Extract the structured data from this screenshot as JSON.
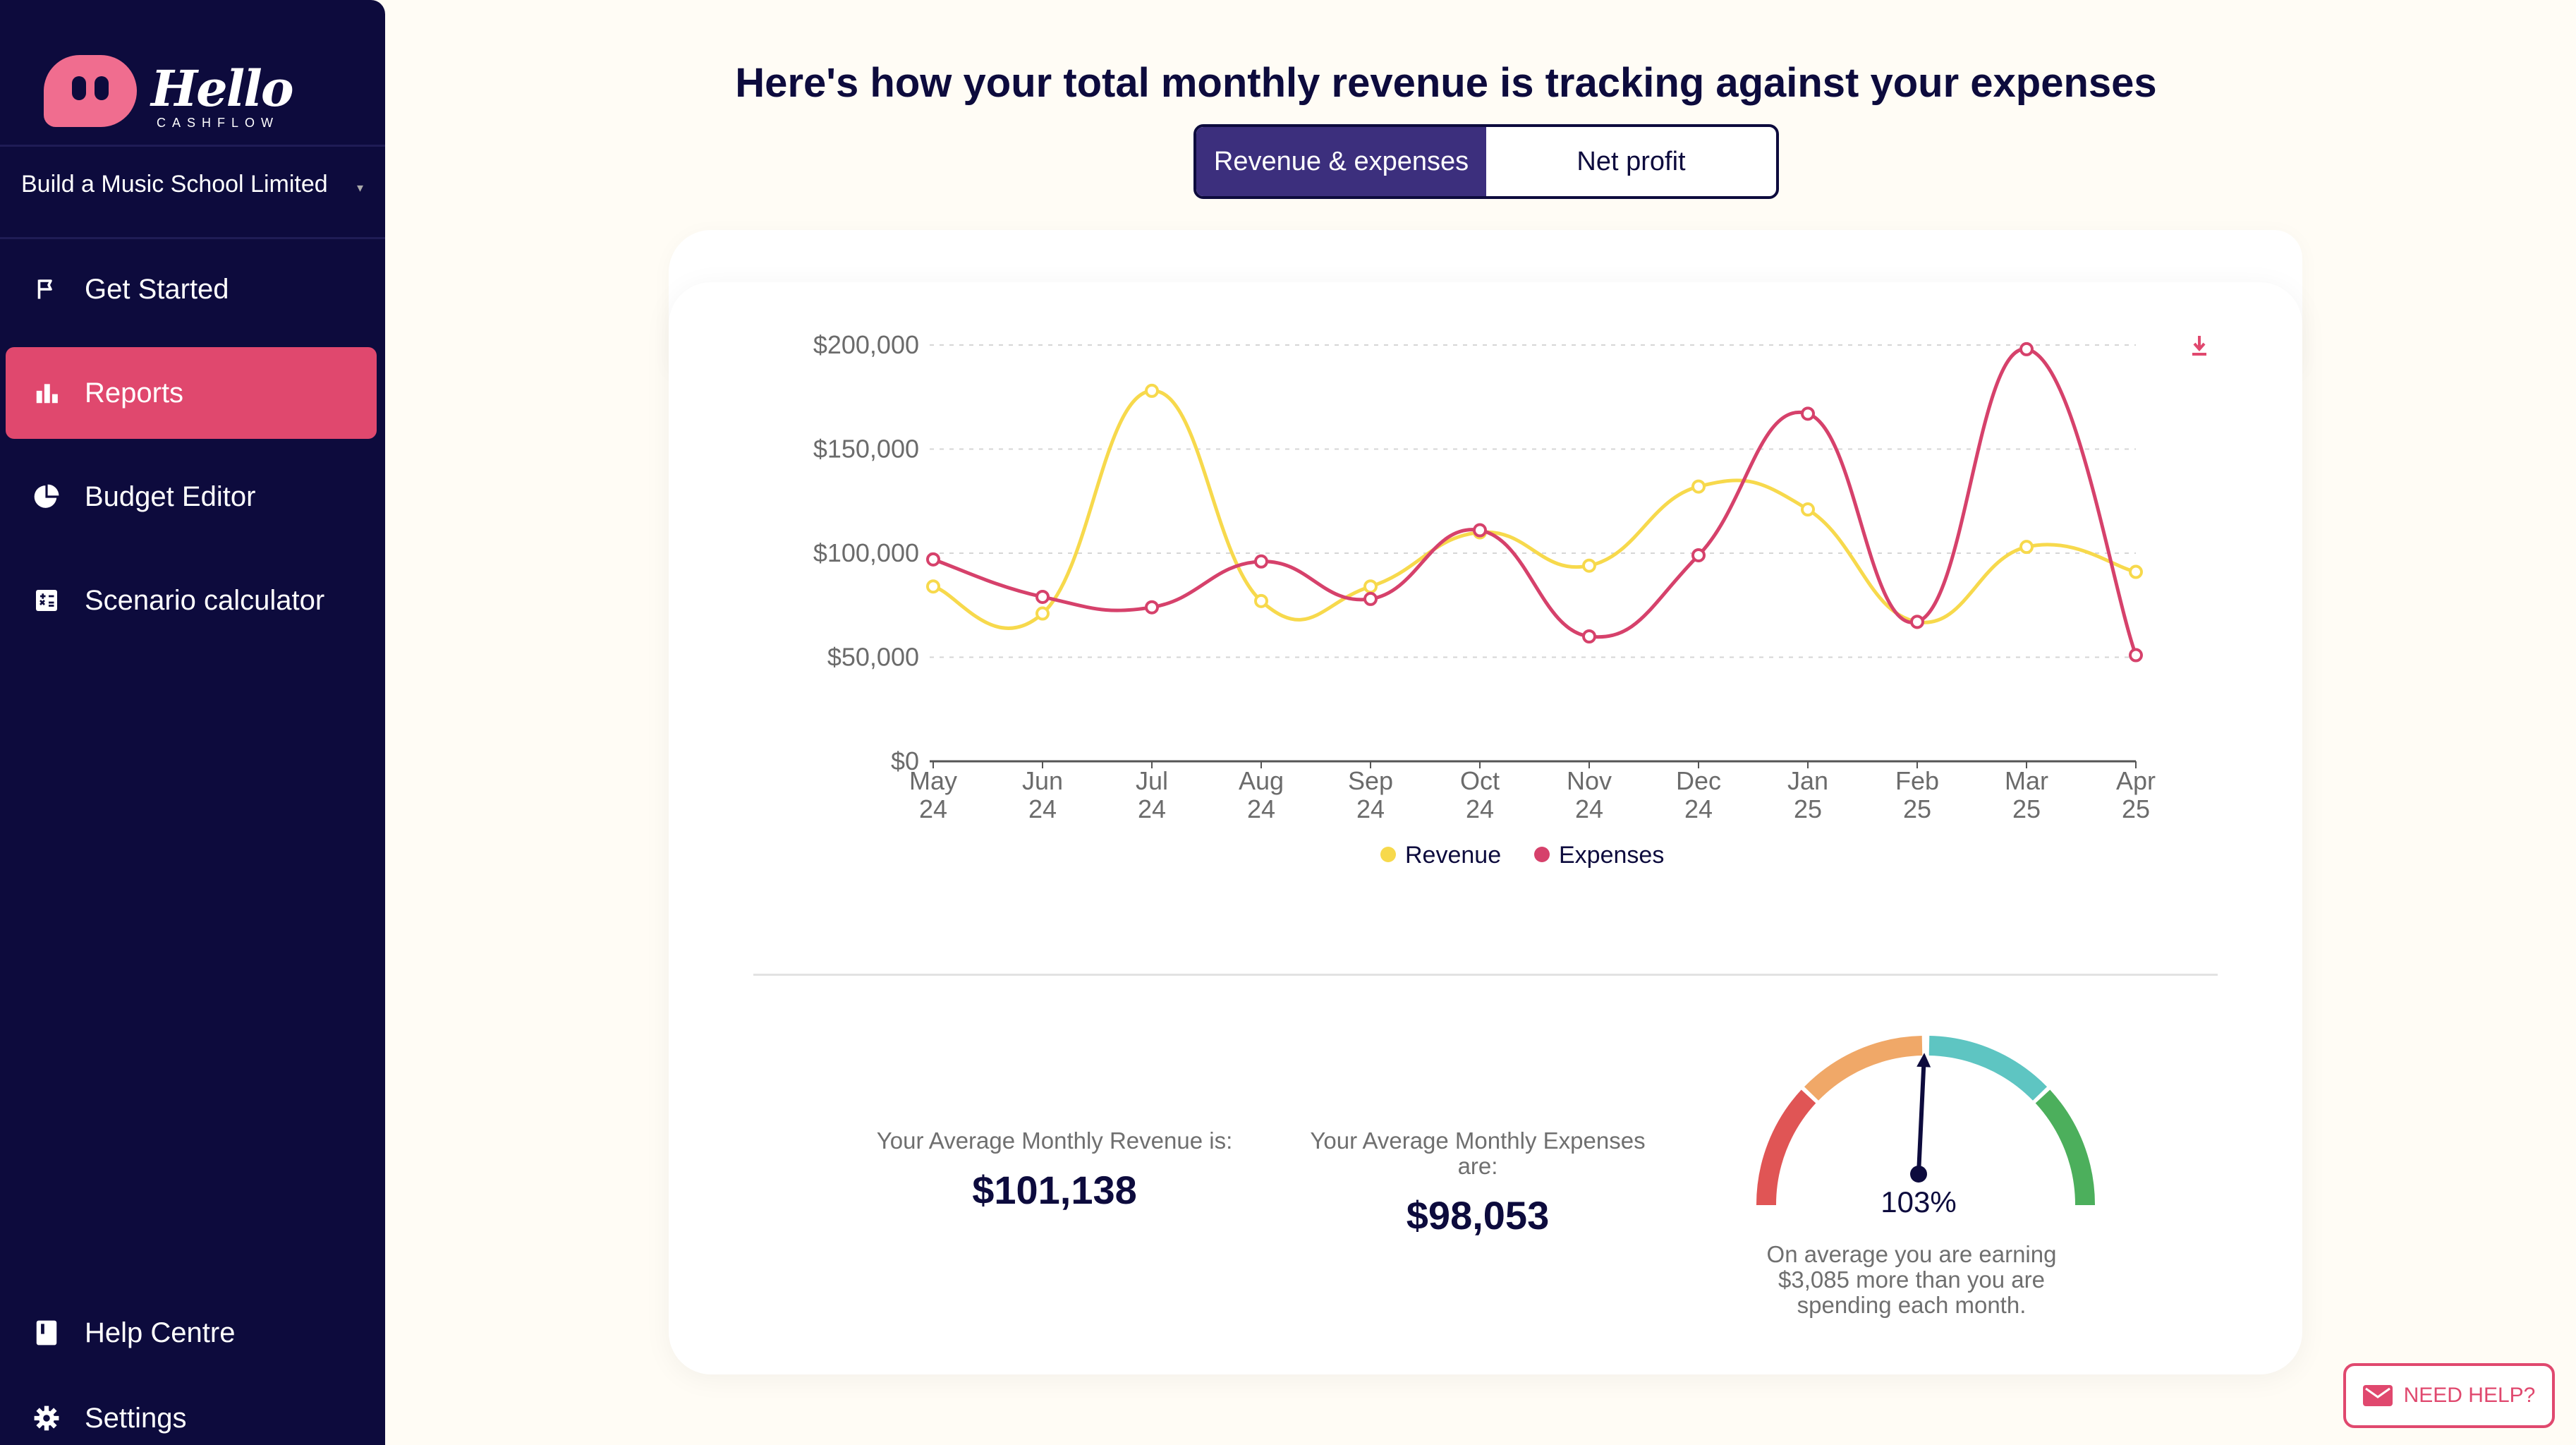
{
  "brand": {
    "name": "Hello",
    "sub": "CASHFLOW"
  },
  "company": {
    "name": "Build a Music School Limited"
  },
  "sidebar": {
    "items": [
      {
        "label": "Get Started",
        "icon": "flag-icon"
      },
      {
        "label": "Reports",
        "icon": "bar-chart-icon",
        "active": true
      },
      {
        "label": "Budget Editor",
        "icon": "pie-chart-icon"
      },
      {
        "label": "Scenario calculator",
        "icon": "calculator-icon"
      }
    ],
    "bottom": [
      {
        "label": "Help Centre",
        "icon": "book-icon"
      },
      {
        "label": "Settings",
        "icon": "gear-icon"
      }
    ]
  },
  "main": {
    "heading": "Here's how your total monthly revenue is tracking against your expenses",
    "tabs": [
      {
        "label": "Revenue & expenses",
        "active": true
      },
      {
        "label": "Net profit",
        "active": false
      }
    ]
  },
  "chart_data": {
    "type": "line",
    "title": "",
    "categories": [
      [
        "May",
        "24"
      ],
      [
        "Jun",
        "24"
      ],
      [
        "Jul",
        "24"
      ],
      [
        "Aug",
        "24"
      ],
      [
        "Sep",
        "24"
      ],
      [
        "Oct",
        "24"
      ],
      [
        "Nov",
        "24"
      ],
      [
        "Dec",
        "24"
      ],
      [
        "Jan",
        "25"
      ],
      [
        "Feb",
        "25"
      ],
      [
        "Mar",
        "25"
      ],
      [
        "Apr",
        "25"
      ]
    ],
    "y_ticks": [
      "$0",
      "$50,000",
      "$100,000",
      "$150,000",
      "$200,000"
    ],
    "ylim": [
      0,
      200000
    ],
    "grid": true,
    "legend": "bottom-center",
    "series": [
      {
        "name": "Revenue",
        "color": "#f7d94c",
        "values": [
          84000,
          71000,
          178000,
          77000,
          84000,
          110000,
          94000,
          132000,
          121000,
          67000,
          103000,
          91000
        ]
      },
      {
        "name": "Expenses",
        "color": "#d6416b",
        "values": [
          97000,
          79000,
          74000,
          96000,
          78000,
          111000,
          60000,
          99000,
          167000,
          67000,
          198000,
          51000
        ]
      }
    ]
  },
  "stats": {
    "revenue_label": "Your Average Monthly Revenue is:",
    "revenue_value": "$101,138",
    "expenses_label_1": "Your Average Monthly Expenses",
    "expenses_label_2": "are:",
    "expenses_value": "$98,053"
  },
  "gauge": {
    "percent": "103%",
    "value": 103,
    "note_line1": "On average you are earning",
    "note_line2": "$3,085 more than you are",
    "note_line3": "spending each month."
  },
  "help": {
    "label": "NEED HELP?"
  },
  "colors": {
    "primary": "#0d0b3d",
    "accent": "#e0486e",
    "revenue": "#f7d94c",
    "expenses": "#d6416b"
  }
}
